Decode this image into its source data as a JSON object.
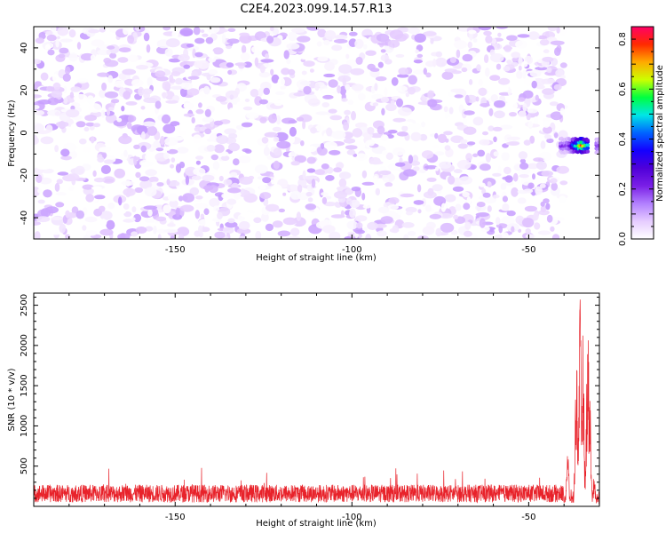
{
  "chart_data": [
    {
      "type": "heatmap",
      "title": "C2E4.2023.099.14.57.R13",
      "xlabel": "Height of straight line (km)",
      "ylabel": "Frequency (Hz)",
      "xlim": [
        -190,
        -30
      ],
      "ylim": [
        -50,
        50
      ],
      "xticks": [
        -150,
        -100,
        -50
      ],
      "yticks": [
        -40,
        -20,
        0,
        20,
        40
      ],
      "colorbar": {
        "label": "Normalized spectral amplitude",
        "range": [
          0.0,
          0.85
        ],
        "ticks": [
          0.0,
          0.2,
          0.4,
          0.6,
          0.8
        ],
        "colors": [
          "#ffffff",
          "#e6ccff",
          "#b280ff",
          "#7a1fe6",
          "#4f00d9",
          "#1400ff",
          "#0064ff",
          "#00e6e6",
          "#00ff40",
          "#ccff00",
          "#ffaa00",
          "#ff2a00",
          "#ff0066"
        ]
      },
      "noise": {
        "x_range": [
          -190,
          -40
        ],
        "level_low": 0.0,
        "level_high": 0.12
      },
      "hotspot": {
        "x_range": [
          -41,
          -30
        ],
        "y_center": -6,
        "y_halfwidth": 3.5,
        "peak_x": -35,
        "peak_value": 0.84
      },
      "gap": {
        "x_range": [
          -33,
          -31
        ]
      },
      "grid": false
    },
    {
      "type": "line",
      "title": "",
      "xlabel": "Height of straight line (km)",
      "ylabel": "SNR (10 * v/v)",
      "xlim": [
        -190,
        -30
      ],
      "ylim": [
        0,
        2650
      ],
      "xticks": [
        -150,
        -100,
        -50
      ],
      "yticks": [
        500,
        1000,
        1500,
        2000,
        2500
      ],
      "series": [
        {
          "color": "#e8222a",
          "baseline": {
            "x_range": [
              -190,
              -40
            ],
            "mean": 160,
            "spread": 110,
            "max": 480
          },
          "peaks": [
            {
              "x": -42,
              "y": 520
            },
            {
              "x": -39,
              "y": 720
            },
            {
              "x": -36.5,
              "y": 1900
            },
            {
              "x": -35.5,
              "y": 2650
            },
            {
              "x": -34.7,
              "y": 2200
            },
            {
              "x": -33.3,
              "y": 2380
            },
            {
              "x": -32.8,
              "y": 1700
            },
            {
              "x": -31.5,
              "y": 350
            }
          ]
        }
      ],
      "grid": false
    }
  ]
}
